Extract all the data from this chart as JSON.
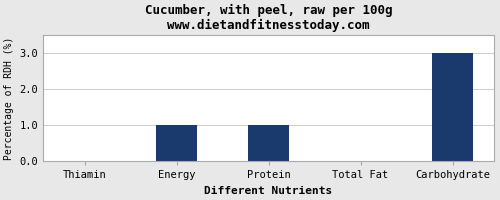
{
  "title": "Cucumber, with peel, raw per 100g",
  "subtitle": "www.dietandfitnesstoday.com",
  "xlabel": "Different Nutrients",
  "ylabel": "Percentage of RDH (%)",
  "categories": [
    "Thiamin",
    "Energy",
    "Protein",
    "Total Fat",
    "Carbohydrate"
  ],
  "values": [
    0.0,
    1.0,
    1.0,
    0.0,
    3.0
  ],
  "bar_color": "#1a3a6e",
  "ylim": [
    0,
    3.5
  ],
  "yticks": [
    0.0,
    1.0,
    2.0,
    3.0
  ],
  "background_color": "#e8e8e8",
  "plot_bg_color": "#ffffff",
  "title_fontsize": 9,
  "subtitle_fontsize": 8,
  "xlabel_fontsize": 8,
  "ylabel_fontsize": 7,
  "tick_fontsize": 7.5,
  "bar_width": 0.45
}
